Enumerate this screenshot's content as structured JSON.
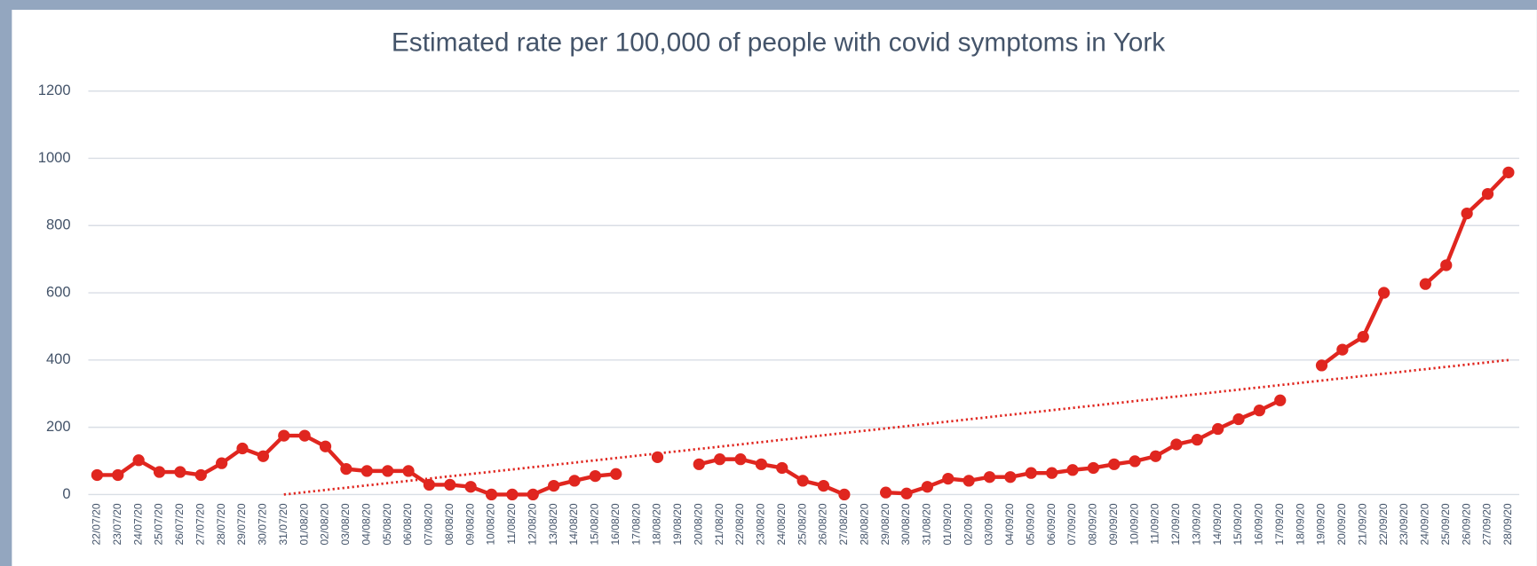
{
  "chart_data": {
    "type": "line",
    "title": "Estimated rate per 100,000 of people with covid symptoms in York",
    "categories": [
      "22/07/20",
      "23/07/20",
      "24/07/20",
      "25/07/20",
      "26/07/20",
      "27/07/20",
      "28/07/20",
      "29/07/20",
      "30/07/20",
      "31/07/20",
      "01/08/20",
      "02/08/20",
      "03/08/20",
      "04/08/20",
      "05/08/20",
      "06/08/20",
      "07/08/20",
      "08/08/20",
      "09/08/20",
      "10/08/20",
      "11/08/20",
      "12/08/20",
      "13/08/20",
      "14/08/20",
      "15/08/20",
      "16/08/20",
      "17/08/20",
      "18/08/20",
      "19/08/20",
      "20/08/20",
      "21/08/20",
      "22/08/20",
      "23/08/20",
      "24/08/20",
      "25/08/20",
      "26/08/20",
      "27/08/20",
      "28/08/20",
      "29/08/20",
      "30/08/20",
      "31/08/20",
      "01/09/20",
      "02/09/20",
      "03/09/20",
      "04/09/20",
      "05/09/20",
      "06/09/20",
      "07/09/20",
      "08/09/20",
      "09/09/20",
      "10/09/20",
      "11/09/20",
      "12/09/20",
      "13/09/20",
      "14/09/20",
      "15/09/20",
      "16/09/20",
      "17/09/20",
      "18/09/20",
      "19/09/20",
      "20/09/20",
      "21/09/20",
      "22/09/20",
      "23/09/20",
      "24/09/20",
      "25/09/20",
      "26/09/20",
      "27/09/20",
      "28/09/20"
    ],
    "values": [
      58,
      58,
      102,
      67,
      67,
      58,
      93,
      137,
      114,
      175,
      175,
      143,
      76,
      70,
      70,
      70,
      29,
      29,
      23,
      0,
      0,
      0,
      26,
      41,
      55,
      61,
      null,
      111,
      null,
      90,
      105,
      105,
      90,
      79,
      41,
      26,
      0,
      null,
      6,
      3,
      23,
      47,
      41,
      52,
      52,
      64,
      64,
      73,
      79,
      90,
      99,
      114,
      149,
      163,
      195,
      224,
      250,
      280,
      null,
      384,
      431,
      469,
      600,
      null,
      626,
      682,
      836,
      894,
      958
    ],
    "color": "#e0261f",
    "trendline": {
      "categories": [
        "31/07/20",
        "28/09/20"
      ],
      "values": [
        0,
        400
      ],
      "color": "#e0261f"
    },
    "ylim": [
      0,
      1200
    ],
    "yticks": [
      0,
      200,
      400,
      600,
      800,
      1000,
      1200
    ],
    "grid": true
  }
}
